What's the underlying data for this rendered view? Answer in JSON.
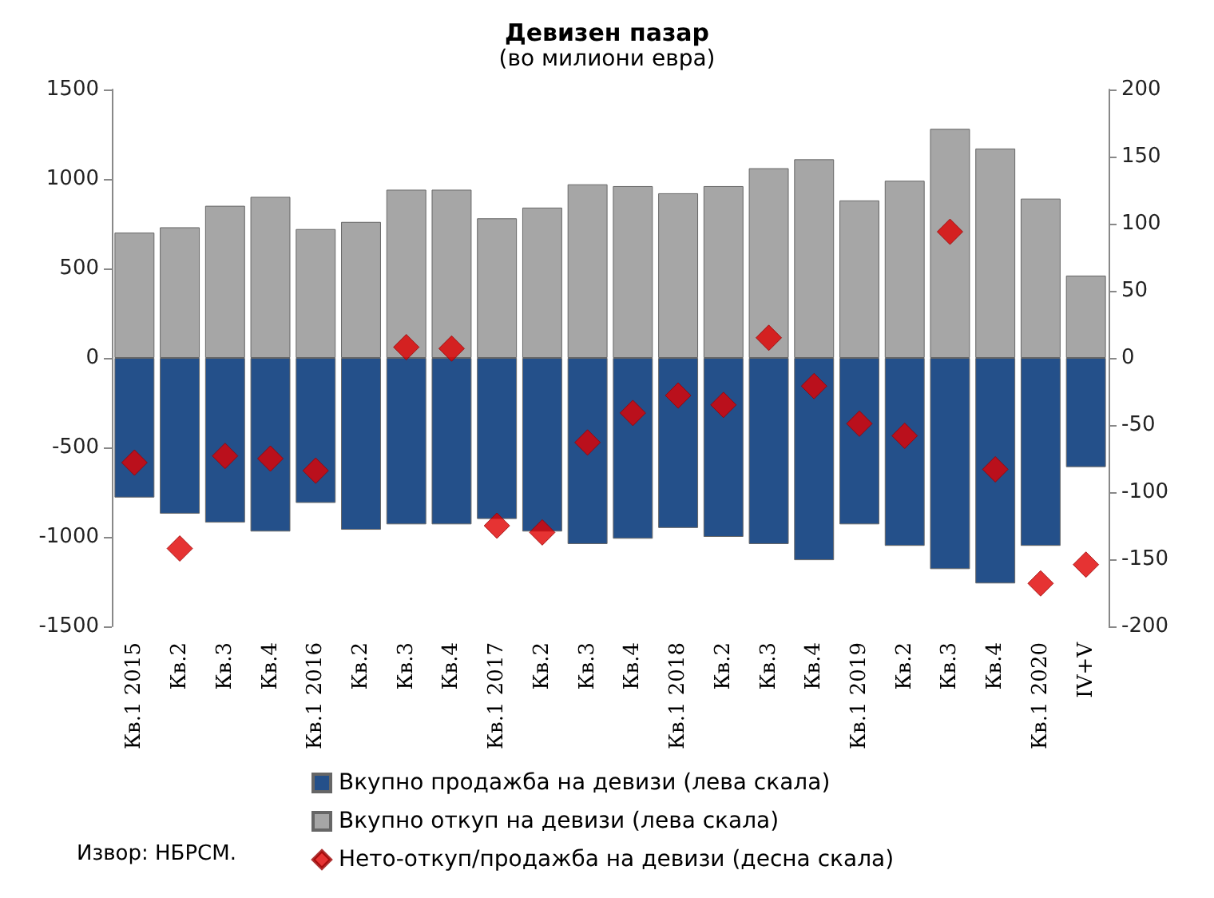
{
  "chart_data": {
    "type": "bar",
    "title": "Девизен пазар",
    "subtitle": "(во милиони евра)",
    "categories": [
      "Кв.1 2015",
      "Кв.2",
      "Кв.3",
      "Кв.4",
      "Кв.1 2016",
      "Кв.2",
      "Кв.3",
      "Кв.4",
      "Кв.1 2017",
      "Кв.2",
      "Кв.3",
      "Кв.4",
      "Кв.1 2018",
      "Кв.2",
      "Кв.3",
      "Кв.4",
      "Кв.1 2019",
      "Кв.2",
      "Кв.3",
      "Кв.4",
      "Кв.1 2020",
      "IV+V"
    ],
    "stacked": true,
    "series": [
      {
        "name": "Вкупно продажба на девизи (лева скала)",
        "color": "#24508a",
        "values": [
          -780,
          -870,
          -920,
          -970,
          -810,
          -960,
          -930,
          -930,
          -900,
          -970,
          -1040,
          -1010,
          -950,
          -1000,
          -1040,
          -1130,
          -930,
          -1050,
          -1180,
          -1260,
          -1050,
          -610
        ]
      },
      {
        "name": "Вкупно откуп на девизи (лева скала)",
        "color": "#a6a6a6",
        "values": [
          700,
          730,
          850,
          900,
          720,
          760,
          940,
          940,
          780,
          840,
          970,
          960,
          920,
          960,
          1060,
          1110,
          880,
          990,
          1280,
          1170,
          890,
          460
        ]
      },
      {
        "name": "Нето-откуп/продажба на девизи (десна скала)",
        "type": "scatter",
        "axis": "y2",
        "color": "#e00000",
        "values": [
          -78,
          -142,
          -73,
          -75,
          -84,
          null,
          8,
          7,
          -125,
          -130,
          -63,
          -41,
          -28,
          -35,
          15,
          -21,
          -49,
          -58,
          94,
          -83,
          -168,
          -154
        ]
      }
    ],
    "ylim": [
      -1500,
      1500
    ],
    "yticks": [
      -1500,
      -1000,
      -500,
      0,
      500,
      1000,
      1500
    ],
    "y2lim": [
      -200,
      200
    ],
    "y2ticks": [
      -200,
      -150,
      -100,
      -50,
      0,
      50,
      100,
      150,
      200
    ],
    "marker": "diamond",
    "legend": "bottom",
    "grid": false,
    "annotations": [
      "Извор: НБРСМ."
    ]
  }
}
